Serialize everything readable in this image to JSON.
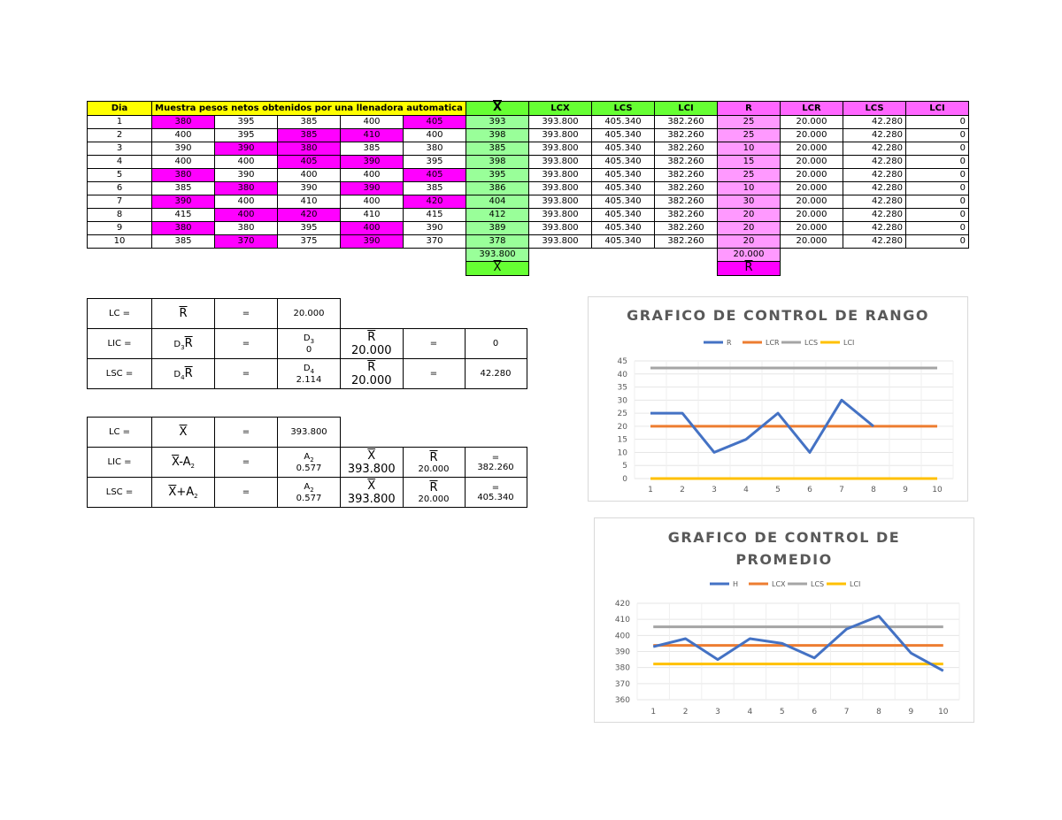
{
  "colors": {
    "yellow": "#ffff00",
    "green": "#66ff33",
    "pink": "#ff66ff",
    "magenta": "#ff00ff",
    "light_green": "#99ff99",
    "light_pink": "#ff99ff",
    "R": "#4472c4",
    "LCR": "#ed7d31",
    "LCS": "#a5a5a5",
    "LCI": "#ffc000"
  },
  "table": {
    "headers": {
      "dia": "Dia",
      "muestra": "Muestra pesos netos obtenidos por una llenadora automatica",
      "x": "X",
      "lcx": "LCX",
      "lcs": "LCS",
      "lci": "LCI",
      "r": "R",
      "lcr": "LCR",
      "lcs2": "LCS",
      "lci2": "LCI"
    },
    "rows": [
      {
        "dia": "1",
        "m": [
          "380",
          "395",
          "385",
          "400",
          "405"
        ],
        "mag": [
          1,
          0,
          0,
          0,
          1
        ],
        "x": "393",
        "lcx": "393.800",
        "lcs": "405.340",
        "lci": "382.260",
        "r": "25",
        "lcr": "20.000",
        "lcs2": "42.280",
        "lci2": "0"
      },
      {
        "dia": "2",
        "m": [
          "400",
          "395",
          "385",
          "410",
          "400"
        ],
        "mag": [
          0,
          0,
          1,
          1,
          0
        ],
        "x": "398",
        "lcx": "393.800",
        "lcs": "405.340",
        "lci": "382.260",
        "r": "25",
        "lcr": "20.000",
        "lcs2": "42.280",
        "lci2": "0"
      },
      {
        "dia": "3",
        "m": [
          "390",
          "390",
          "380",
          "385",
          "380"
        ],
        "mag": [
          0,
          1,
          1,
          0,
          0
        ],
        "x": "385",
        "lcx": "393.800",
        "lcs": "405.340",
        "lci": "382.260",
        "r": "10",
        "lcr": "20.000",
        "lcs2": "42.280",
        "lci2": "0"
      },
      {
        "dia": "4",
        "m": [
          "400",
          "400",
          "405",
          "390",
          "395"
        ],
        "mag": [
          0,
          0,
          1,
          1,
          0
        ],
        "x": "398",
        "lcx": "393.800",
        "lcs": "405.340",
        "lci": "382.260",
        "r": "15",
        "lcr": "20.000",
        "lcs2": "42.280",
        "lci2": "0"
      },
      {
        "dia": "5",
        "m": [
          "380",
          "390",
          "400",
          "400",
          "405"
        ],
        "mag": [
          1,
          0,
          0,
          0,
          1
        ],
        "x": "395",
        "lcx": "393.800",
        "lcs": "405.340",
        "lci": "382.260",
        "r": "25",
        "lcr": "20.000",
        "lcs2": "42.280",
        "lci2": "0"
      },
      {
        "dia": "6",
        "m": [
          "385",
          "380",
          "390",
          "390",
          "385"
        ],
        "mag": [
          0,
          1,
          0,
          1,
          0
        ],
        "x": "386",
        "lcx": "393.800",
        "lcs": "405.340",
        "lci": "382.260",
        "r": "10",
        "lcr": "20.000",
        "lcs2": "42.280",
        "lci2": "0"
      },
      {
        "dia": "7",
        "m": [
          "390",
          "400",
          "410",
          "400",
          "420"
        ],
        "mag": [
          1,
          0,
          0,
          0,
          1
        ],
        "x": "404",
        "lcx": "393.800",
        "lcs": "405.340",
        "lci": "382.260",
        "r": "30",
        "lcr": "20.000",
        "lcs2": "42.280",
        "lci2": "0"
      },
      {
        "dia": "8",
        "m": [
          "415",
          "400",
          "420",
          "410",
          "415"
        ],
        "mag": [
          0,
          1,
          1,
          0,
          0
        ],
        "x": "412",
        "lcx": "393.800",
        "lcs": "405.340",
        "lci": "382.260",
        "r": "20",
        "lcr": "20.000",
        "lcs2": "42.280",
        "lci2": "0"
      },
      {
        "dia": "9",
        "m": [
          "380",
          "380",
          "395",
          "400",
          "390"
        ],
        "mag": [
          1,
          0,
          0,
          1,
          0
        ],
        "x": "389",
        "lcx": "393.800",
        "lcs": "405.340",
        "lci": "382.260",
        "r": "20",
        "lcr": "20.000",
        "lcs2": "42.280",
        "lci2": "0"
      },
      {
        "dia": "10",
        "m": [
          "385",
          "370",
          "375",
          "390",
          "370"
        ],
        "mag": [
          0,
          1,
          0,
          1,
          0
        ],
        "x": "378",
        "lcx": "393.800",
        "lcs": "405.340",
        "lci": "382.260",
        "r": "20",
        "lcr": "20.000",
        "lcs2": "42.280",
        "lci2": "0"
      }
    ],
    "x_bar_value": "393.800",
    "x_bar_label": "X",
    "r_bar_value": "20.000",
    "r_bar_label": "R"
  },
  "range_formulas": {
    "lc_label": "LC =",
    "lc_sym": "R",
    "lc_eq": "=",
    "lc_val": "20.000",
    "lic_label": "LIC =",
    "lic_sym": "D",
    "lic_sub": "3",
    "lic_sym2": "R",
    "lic_eq": "=",
    "lic_d": "D",
    "lic_dsub": "3",
    "lic_dval": "0",
    "lic_r": "R",
    "lic_rval": "20.000",
    "lic_eq2": "=",
    "lic_res": "0",
    "lsc_label": "LSC =",
    "lsc_sym": "D",
    "lsc_sub": "4",
    "lsc_sym2": "R",
    "lsc_eq": "=",
    "lsc_d": "D",
    "lsc_dsub": "4",
    "lsc_dval": "2.114",
    "lsc_r": "R",
    "lsc_rval": "20.000",
    "lsc_eq2": "=",
    "lsc_res": "42.280"
  },
  "mean_formulas": {
    "lc_label": "LC =",
    "lc_sym": "X",
    "lc_eq": "=",
    "lc_val": "393.800",
    "lic_label": "LIC =",
    "lic_sym": "X",
    "lic_op": "-A",
    "lic_sub": "2",
    "lic_eq": "=",
    "lic_a": "A",
    "lic_asub": "2",
    "lic_aval": "0.577",
    "lic_x": "X",
    "lic_xval": "393.800",
    "lic_r": "R",
    "lic_rval": "20.000",
    "lic_eq2": "=",
    "lic_res": "382.260",
    "lsc_label": "LSC =",
    "lsc_sym": "X",
    "lsc_op": "+A",
    "lsc_sub": "2",
    "lsc_eq": "=",
    "lsc_a": "A",
    "lsc_asub": "2",
    "lsc_aval": "0.577",
    "lsc_x": "X",
    "lsc_xval": "393.800",
    "lsc_r": "R",
    "lsc_rval": "20.000",
    "lsc_eq2": "=",
    "lsc_res": "405.340"
  },
  "chart_data": [
    {
      "type": "line",
      "title": "GRAFICO DE CONTROL DE RANGO",
      "x": [
        1,
        2,
        3,
        4,
        5,
        6,
        7,
        8,
        9,
        10
      ],
      "ylim": [
        0,
        45
      ],
      "yticks": [
        0,
        5,
        10,
        15,
        20,
        25,
        30,
        35,
        40,
        45
      ],
      "grid": true,
      "legend": "top",
      "series": [
        {
          "name": "R",
          "values": [
            25,
            25,
            10,
            15,
            25,
            10,
            30,
            20,
            null,
            null
          ],
          "color": "#4472c4"
        },
        {
          "name": "LCR",
          "values": [
            20,
            20,
            20,
            20,
            20,
            20,
            20,
            20,
            20,
            20
          ],
          "color": "#ed7d31"
        },
        {
          "name": "LCS",
          "values": [
            42.28,
            42.28,
            42.28,
            42.28,
            42.28,
            42.28,
            42.28,
            42.28,
            42.28,
            42.28
          ],
          "color": "#a5a5a5"
        },
        {
          "name": "LCI",
          "values": [
            0,
            0,
            0,
            0,
            0,
            0,
            0,
            0,
            0,
            0
          ],
          "color": "#ffc000"
        }
      ]
    },
    {
      "type": "line",
      "title": "GRAFICO DE CONTROL DE PROMEDIO",
      "x": [
        1,
        2,
        3,
        4,
        5,
        6,
        7,
        8,
        9,
        10
      ],
      "ylim": [
        360,
        420
      ],
      "yticks": [
        360,
        370,
        380,
        390,
        400,
        410,
        420
      ],
      "grid": true,
      "legend": "top",
      "series": [
        {
          "name": "H",
          "values": [
            393,
            398,
            385,
            398,
            395,
            386,
            404,
            412,
            389,
            378
          ],
          "color": "#4472c4"
        },
        {
          "name": "LCX",
          "values": [
            393.8,
            393.8,
            393.8,
            393.8,
            393.8,
            393.8,
            393.8,
            393.8,
            393.8,
            393.8
          ],
          "color": "#ed7d31"
        },
        {
          "name": "LCS",
          "values": [
            405.34,
            405.34,
            405.34,
            405.34,
            405.34,
            405.34,
            405.34,
            405.34,
            405.34,
            405.34
          ],
          "color": "#a5a5a5"
        },
        {
          "name": "LCI",
          "values": [
            382.26,
            382.26,
            382.26,
            382.26,
            382.26,
            382.26,
            382.26,
            382.26,
            382.26,
            382.26
          ],
          "color": "#ffc000"
        }
      ]
    }
  ]
}
